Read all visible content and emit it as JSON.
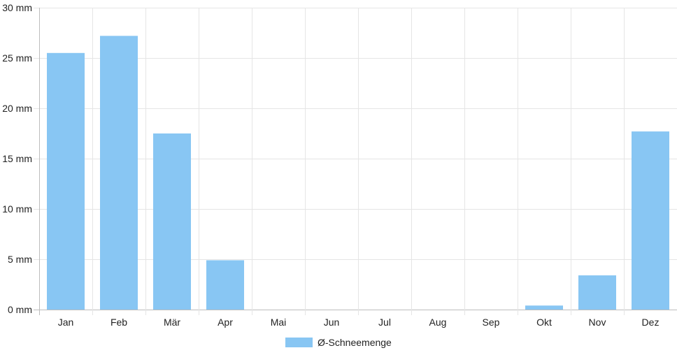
{
  "chart_data": {
    "type": "bar",
    "categories": [
      "Jan",
      "Feb",
      "Mär",
      "Apr",
      "Mai",
      "Jun",
      "Jul",
      "Aug",
      "Sep",
      "Okt",
      "Nov",
      "Dez"
    ],
    "series": [
      {
        "name": "Ø-Schneemenge",
        "values": [
          25.5,
          27.2,
          17.5,
          4.9,
          0,
          0,
          0,
          0,
          0,
          0.4,
          3.4,
          17.7
        ],
        "color": "#88c6f3"
      }
    ],
    "ylim": [
      0,
      30
    ],
    "y_ticks": [
      {
        "value": 0,
        "label": "0 mm"
      },
      {
        "value": 5,
        "label": "5 mm"
      },
      {
        "value": 10,
        "label": "10 mm"
      },
      {
        "value": 15,
        "label": "15 mm"
      },
      {
        "value": 20,
        "label": "20 mm"
      },
      {
        "value": 25,
        "label": "25 mm"
      },
      {
        "value": 30,
        "label": "30 mm"
      }
    ],
    "grid": true,
    "legend_position": "bottom",
    "grid_color": "#e5e5e5",
    "axis_color": "#bdbdbd"
  }
}
